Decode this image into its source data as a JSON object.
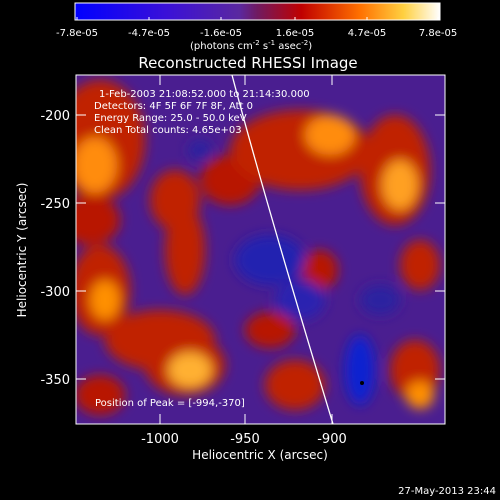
{
  "colorbar": {
    "ticks": [
      "-7.8e-05",
      "-4.7e-05",
      "-1.6e-05",
      "1.6e-05",
      "4.7e-05",
      "7.8e-05"
    ],
    "units_main": "(photons cm",
    "units_exp1": "-2",
    "units_mid": " s",
    "units_exp2": "-1",
    "units_end": " asec",
    "units_exp3": "-2",
    "units_close": ")"
  },
  "plot": {
    "title": "Reconstructed RHESSI Image",
    "xlabel": "Heliocentric X (arcsec)",
    "ylabel": "Heliocentric Y (arcsec)",
    "x_ticks": [
      "-1000",
      "-950",
      "-900"
    ],
    "y_ticks": [
      "-200",
      "-250",
      "-300",
      "-350"
    ],
    "x_range": [
      -1042,
      -868
    ],
    "y_range": [
      -372,
      -174
    ]
  },
  "annotations": {
    "time_range": "1-Feb-2003 21:08:52.000 to 21:14:30.000",
    "detectors": "Detectors: 4F 5F 6F 7F 8F, Att 0",
    "energy": "Energy Range: 25.0 - 50.0 keV",
    "clean": "Clean     Total counts: 4.65e+03",
    "peak": "Position of Peak = [-994,-370]"
  },
  "footer": {
    "timestamp": "27-May-2013 23:44"
  },
  "colors": {
    "background": "#000000",
    "text": "#ffffff"
  }
}
